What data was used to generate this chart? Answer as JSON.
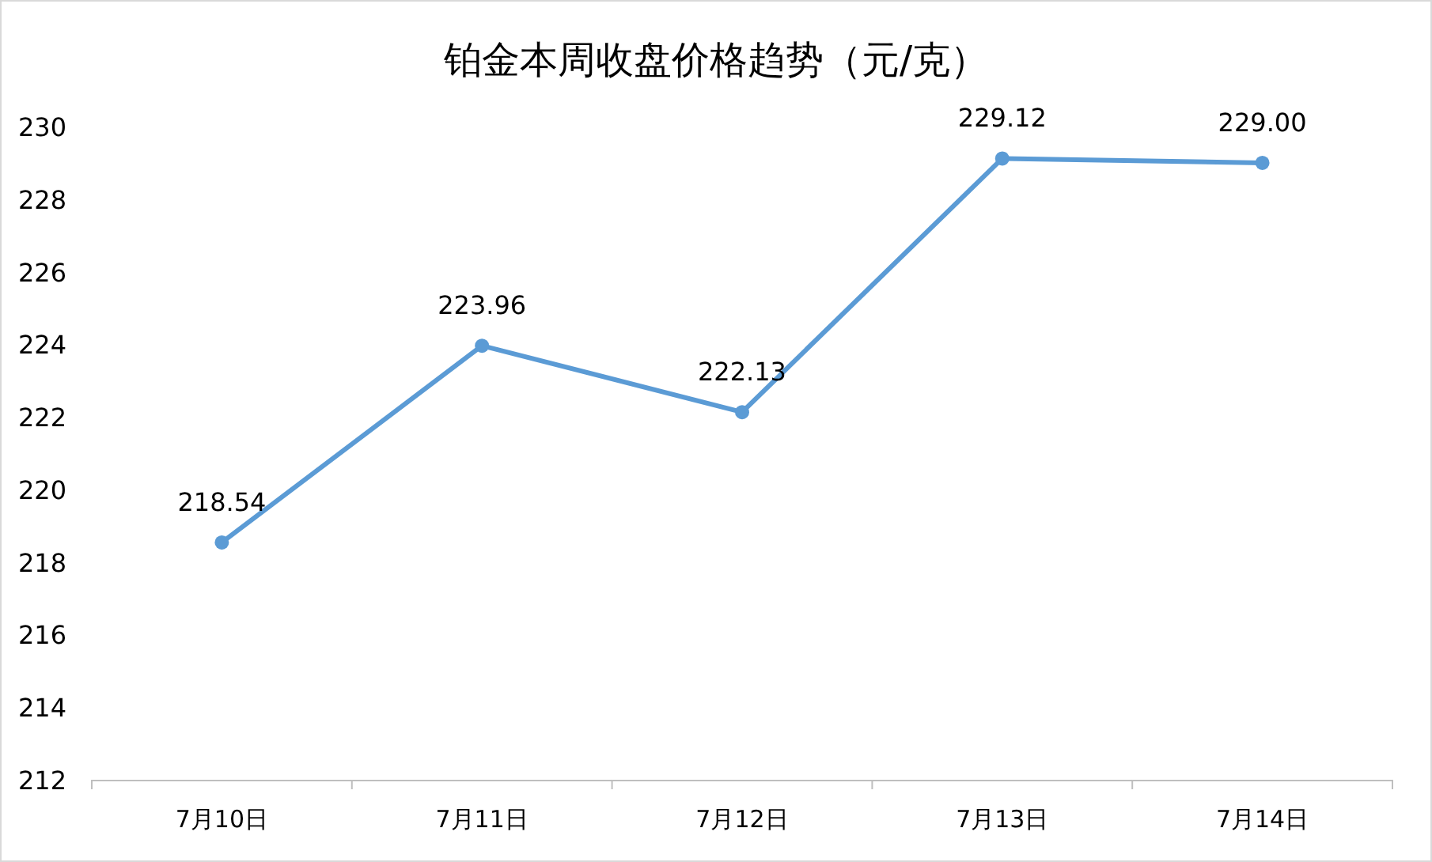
{
  "chart_data": {
    "type": "line",
    "title": "铂金本周收盘价格趋势（元/克）",
    "categories": [
      "7月10日",
      "7月11日",
      "7月12日",
      "7月13日",
      "7月14日"
    ],
    "values": [
      218.54,
      223.96,
      222.13,
      229.12,
      229.0
    ],
    "value_labels": [
      "218.54",
      "223.96",
      "222.13",
      "229.12",
      "229.00"
    ],
    "color": "#5b9bd5",
    "marker": "circle",
    "ylim": [
      212,
      230
    ],
    "yticks": [
      212,
      214,
      216,
      218,
      220,
      222,
      224,
      226,
      228,
      230
    ]
  }
}
